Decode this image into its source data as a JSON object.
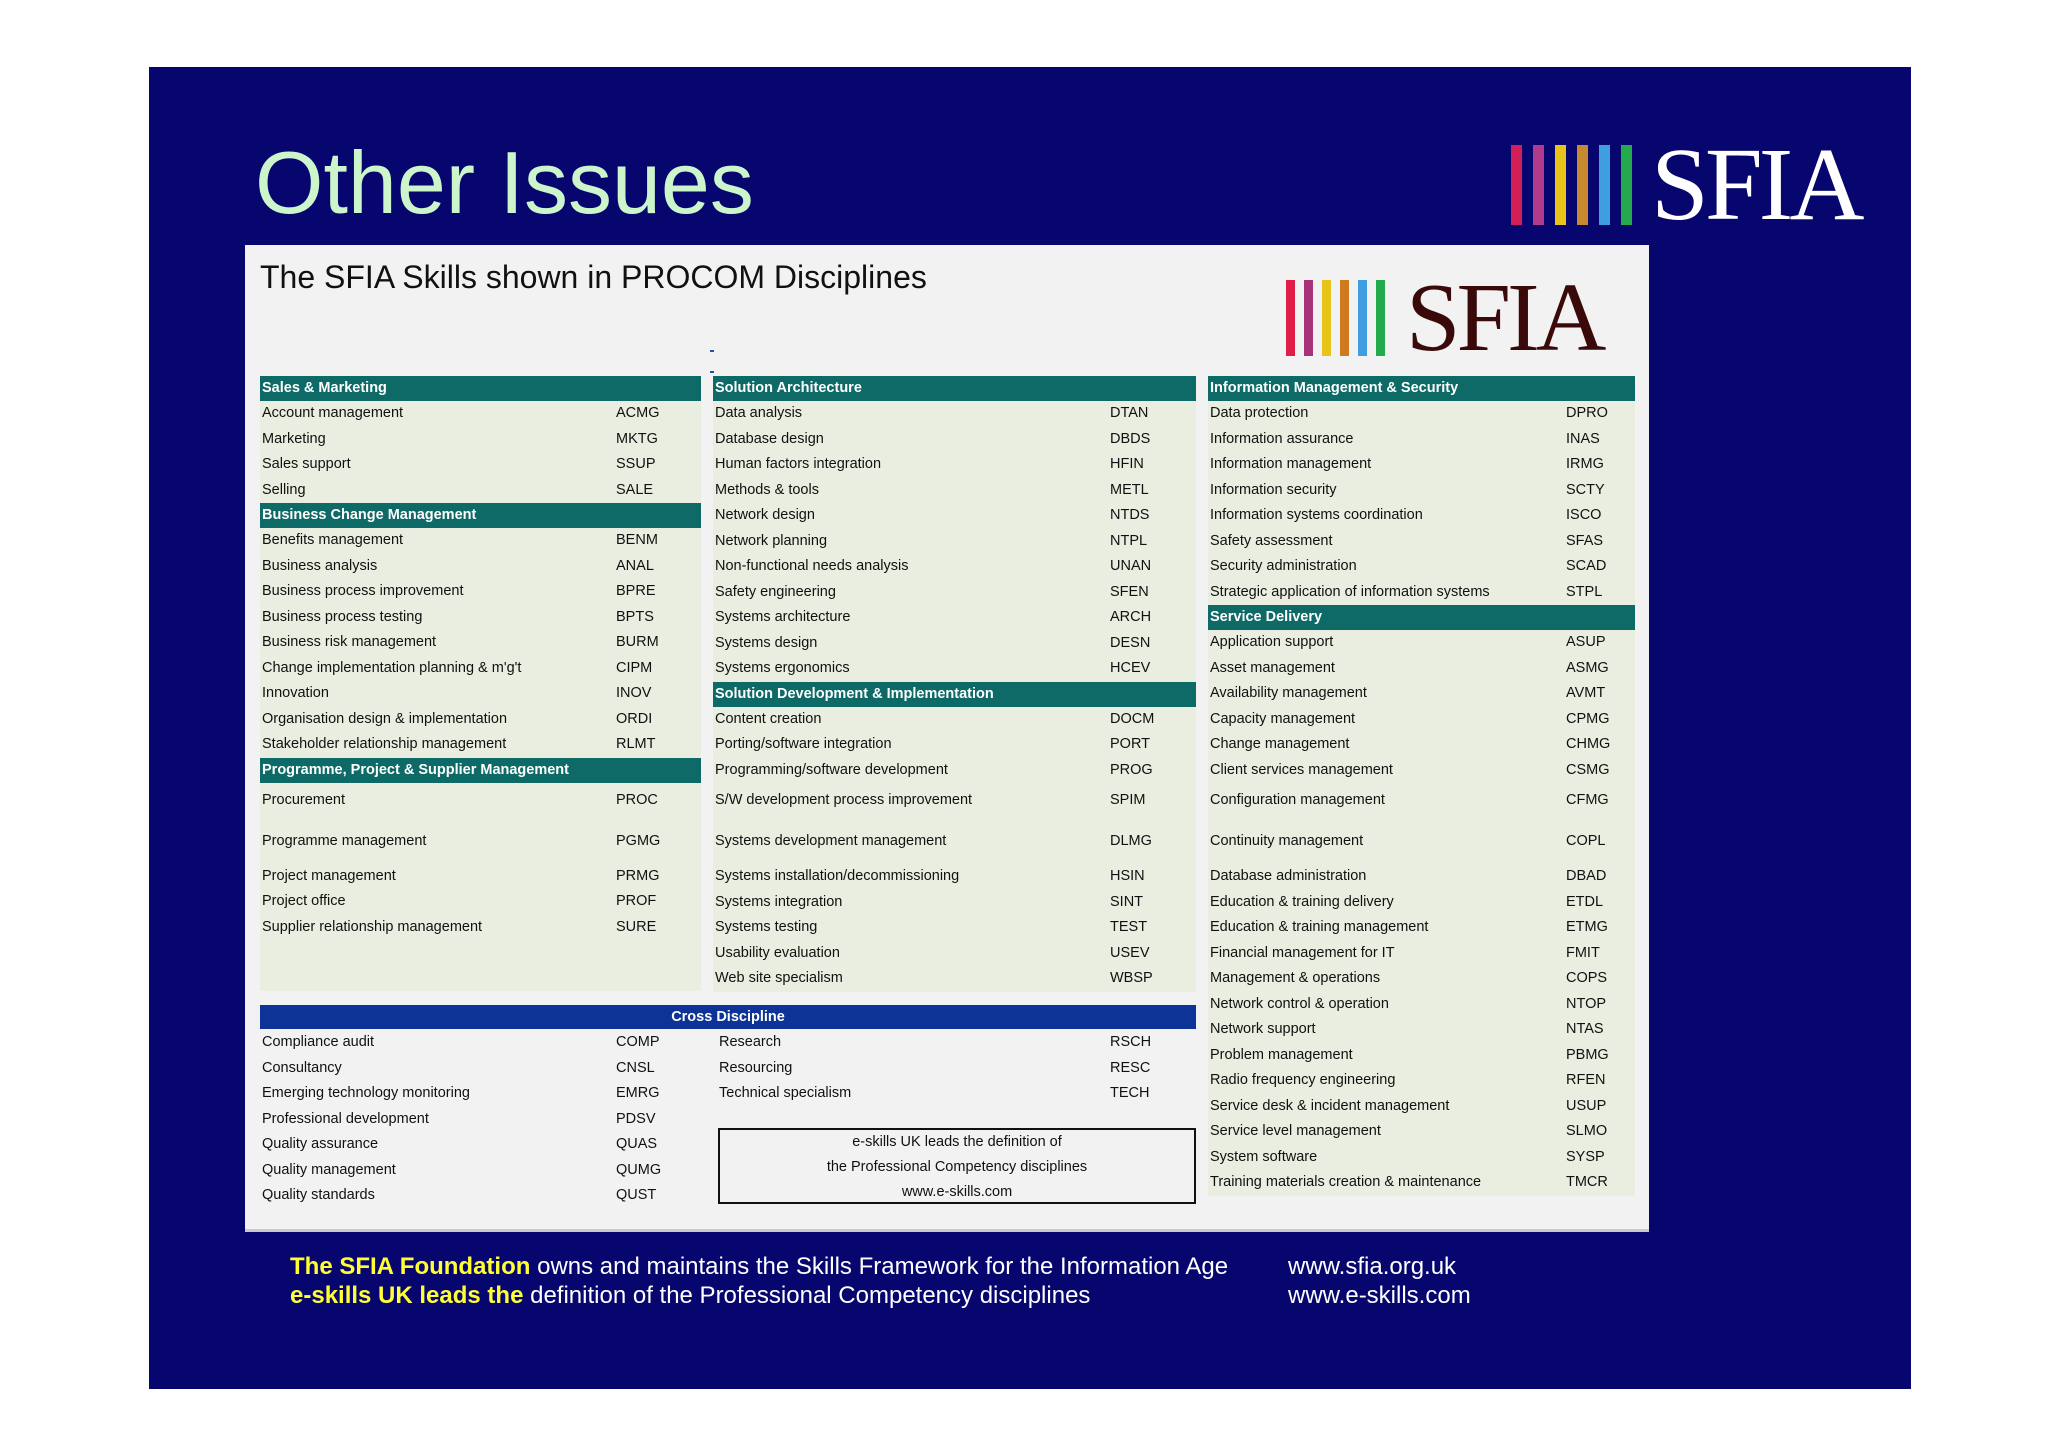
{
  "slide": {
    "title": "Other Issues",
    "logo_text": "SFIA",
    "logo_colors": [
      "#d21f57",
      "#b03a8c",
      "#e8c41a",
      "#c88a2e",
      "#3f9ee0",
      "#22aa4c"
    ]
  },
  "panel": {
    "title": "The SFIA Skills shown in PROCOM Disciplines",
    "logo_text": "SFIA",
    "logo_colors": [
      "#e01d48",
      "#a8327a",
      "#e8c41a",
      "#d07a1e",
      "#3f9ee0",
      "#22aa4c"
    ]
  },
  "columns": [
    {
      "sections": [
        {
          "title": "Sales & Marketing",
          "skills": [
            {
              "name": "Account management",
              "code": "ACMG"
            },
            {
              "name": "Marketing",
              "code": "MKTG"
            },
            {
              "name": "Sales support",
              "code": "SSUP"
            },
            {
              "name": "Selling",
              "code": "SALE"
            }
          ]
        },
        {
          "title": "Business Change Management",
          "skills": [
            {
              "name": "Benefits management",
              "code": "BENM"
            },
            {
              "name": "Business analysis",
              "code": "ANAL"
            },
            {
              "name": "Business process improvement",
              "code": "BPRE"
            },
            {
              "name": "Business process testing",
              "code": "BPTS"
            },
            {
              "name": "Business risk management",
              "code": "BURM"
            },
            {
              "name": "Change implementation planning & m'g't",
              "code": "CIPM"
            },
            {
              "name": "Innovation",
              "code": "INOV"
            },
            {
              "name": "Organisation design & implementation",
              "code": "ORDI"
            },
            {
              "name": "Stakeholder relationship management",
              "code": "RLMT"
            }
          ]
        },
        {
          "title": "Programme, Project & Supplier Management",
          "skills": [
            {
              "name": "Procurement",
              "code": "PROC"
            },
            {
              "name": "Programme management",
              "code": "PGMG"
            },
            {
              "name": "Project management",
              "code": "PRMG"
            },
            {
              "name": "Project office",
              "code": "PROF"
            },
            {
              "name": "Supplier relationship management",
              "code": "SURE"
            }
          ]
        }
      ]
    },
    {
      "sections": [
        {
          "title": "Solution Architecture",
          "skills": [
            {
              "name": "Data analysis",
              "code": "DTAN"
            },
            {
              "name": "Database design",
              "code": "DBDS"
            },
            {
              "name": "Human factors integration",
              "code": "HFIN"
            },
            {
              "name": "Methods & tools",
              "code": "METL"
            },
            {
              "name": "Network design",
              "code": "NTDS"
            },
            {
              "name": "Network planning",
              "code": "NTPL"
            },
            {
              "name": "Non-functional needs analysis",
              "code": "UNAN"
            },
            {
              "name": "Safety engineering",
              "code": "SFEN"
            },
            {
              "name": "Systems architecture",
              "code": "ARCH"
            },
            {
              "name": "Systems design",
              "code": "DESN"
            },
            {
              "name": "Systems ergonomics",
              "code": "HCEV"
            }
          ]
        },
        {
          "title": "Solution Development & Implementation",
          "skills": [
            {
              "name": "Content creation",
              "code": "DOCM"
            },
            {
              "name": "Porting/software integration",
              "code": "PORT"
            },
            {
              "name": "Programming/software development",
              "code": "PROG"
            },
            {
              "name": "S/W development process improvement",
              "code": "SPIM"
            },
            {
              "name": "Systems development management",
              "code": "DLMG"
            },
            {
              "name": "Systems installation/decommissioning",
              "code": "HSIN"
            },
            {
              "name": "Systems integration",
              "code": "SINT"
            },
            {
              "name": "Systems testing",
              "code": "TEST"
            },
            {
              "name": "Usability evaluation",
              "code": "USEV"
            },
            {
              "name": "Web site specialism",
              "code": "WBSP"
            }
          ]
        }
      ]
    },
    {
      "sections": [
        {
          "title": "Information Management & Security",
          "skills": [
            {
              "name": "Data protection",
              "code": "DPRO"
            },
            {
              "name": "Information assurance",
              "code": "INAS"
            },
            {
              "name": "Information management",
              "code": "IRMG"
            },
            {
              "name": "Information security",
              "code": "SCTY"
            },
            {
              "name": "Information systems coordination",
              "code": "ISCO"
            },
            {
              "name": "Safety assessment",
              "code": "SFAS"
            },
            {
              "name": "Security administration",
              "code": "SCAD"
            },
            {
              "name": "Strategic application of information systems",
              "code": "STPL"
            }
          ]
        },
        {
          "title": "Service Delivery",
          "skills": [
            {
              "name": "Application support",
              "code": "ASUP"
            },
            {
              "name": "Asset management",
              "code": "ASMG"
            },
            {
              "name": "Availability management",
              "code": "AVMT"
            },
            {
              "name": "Capacity management",
              "code": "CPMG"
            },
            {
              "name": "Change management",
              "code": "CHMG"
            },
            {
              "name": "Client services management",
              "code": "CSMG"
            },
            {
              "name": "Configuration management",
              "code": "CFMG"
            },
            {
              "name": "Continuity management",
              "code": "COPL"
            },
            {
              "name": "Database administration",
              "code": "DBAD"
            },
            {
              "name": "Education & training delivery",
              "code": "ETDL"
            },
            {
              "name": "Education & training management",
              "code": "ETMG"
            },
            {
              "name": "Financial management for IT",
              "code": "FMIT"
            },
            {
              "name": "Management & operations",
              "code": "COPS"
            },
            {
              "name": "Network control & operation",
              "code": "NTOP"
            },
            {
              "name": "Network support",
              "code": "NTAS"
            },
            {
              "name": "Problem management",
              "code": "PBMG"
            },
            {
              "name": "Radio frequency engineering",
              "code": "RFEN"
            },
            {
              "name": "Service desk & incident management",
              "code": "USUP"
            },
            {
              "name": "Service level management",
              "code": "SLMO"
            },
            {
              "name": "System software",
              "code": "SYSP"
            },
            {
              "name": "Training materials creation & maintenance",
              "code": "TMCR"
            }
          ]
        }
      ]
    }
  ],
  "cross_discipline": {
    "title": "Cross Discipline",
    "left": [
      {
        "name": "Compliance audit",
        "code": "COMP"
      },
      {
        "name": "Consultancy",
        "code": "CNSL"
      },
      {
        "name": "Emerging technology monitoring",
        "code": "EMRG"
      },
      {
        "name": "Professional development",
        "code": "PDSV"
      },
      {
        "name": "Quality assurance",
        "code": "QUAS"
      },
      {
        "name": "Quality management",
        "code": "QUMG"
      },
      {
        "name": "Quality standards",
        "code": "QUST"
      }
    ],
    "middle": [
      {
        "name": "Research",
        "code": "RSCH"
      },
      {
        "name": "Resourcing",
        "code": "RESC"
      },
      {
        "name": "Technical specialism",
        "code": "TECH"
      }
    ]
  },
  "note_box": [
    "e-skills UK leads the definition of",
    "the Professional Competency disciplines",
    "www.e-skills.com"
  ],
  "footer": {
    "line1_highlight": "The SFIA Foundation",
    "line1_rest": " owns and maintains the Skills Framework for the Information Age",
    "line2_highlight": "e-skills UK leads the",
    "line2_rest": " definition of the Professional Competency disciplines",
    "url1": "www.sfia.org.uk",
    "url2": "www.e-skills.com"
  }
}
